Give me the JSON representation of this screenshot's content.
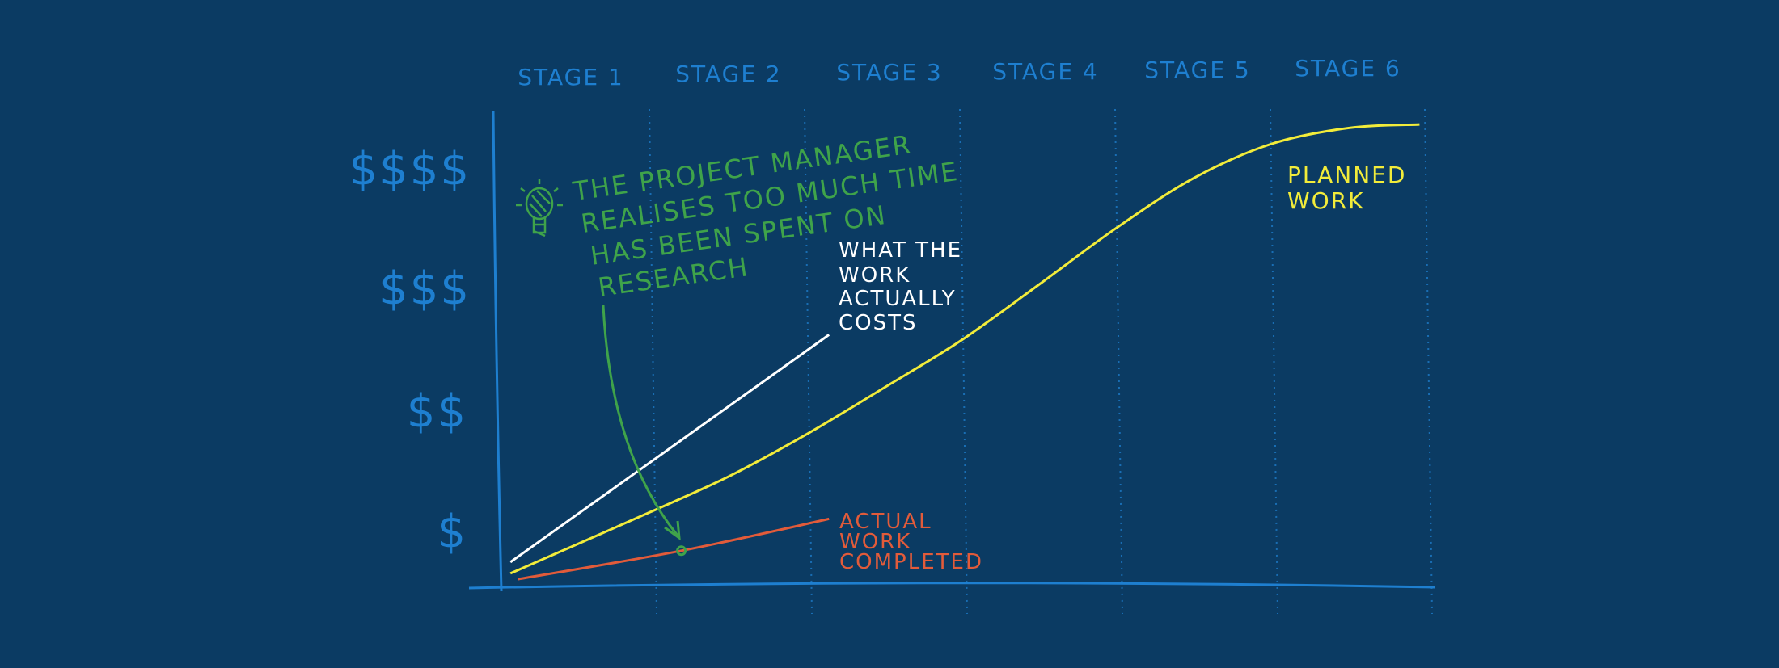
{
  "chart_data": {
    "type": "line",
    "categories": [
      "STAGE 1",
      "STAGE 2",
      "STAGE 3",
      "STAGE 4",
      "STAGE 5",
      "STAGE 6"
    ],
    "y_tick_labels": [
      "$",
      "$$",
      "$$$",
      "$$$$"
    ],
    "xlim": [
      0,
      6
    ],
    "ylim": [
      0,
      4.2
    ],
    "series": [
      {
        "name": "PLANNED WORK",
        "color": "#f2ec3a",
        "x": [
          0.1,
          0.5,
          1.0,
          1.5,
          2.0,
          2.5,
          3.0,
          3.5,
          4.0,
          4.5,
          5.0,
          5.5,
          5.95
        ],
        "y": [
          0.1,
          0.34,
          0.64,
          0.95,
          1.32,
          1.73,
          2.15,
          2.64,
          3.14,
          3.58,
          3.88,
          4.02,
          4.05
        ]
      },
      {
        "name": "WHAT THE WORK ACTUALLY COSTS",
        "color": "#ffffff",
        "x": [
          0.1,
          2.15
        ],
        "y": [
          0.2,
          2.2
        ]
      },
      {
        "name": "ACTUAL WORK COMPLETED",
        "color": "#e25b3a",
        "x": [
          0.15,
          1.2,
          2.15
        ],
        "y": [
          0.05,
          0.3,
          0.58
        ]
      }
    ],
    "annotations": [
      {
        "text_lines": [
          "THE PROJECT MANAGER",
          "REALISES TOO MUCH TIME",
          "HAS BEEN SPENT ON",
          "RESEARCH"
        ],
        "icon": "lightbulb-icon",
        "color": "#3fa34a",
        "points_to": {
          "x": 1.2,
          "y": 0.3
        }
      }
    ],
    "grid": "dotted-vertical",
    "legend": "inline-labels"
  }
}
